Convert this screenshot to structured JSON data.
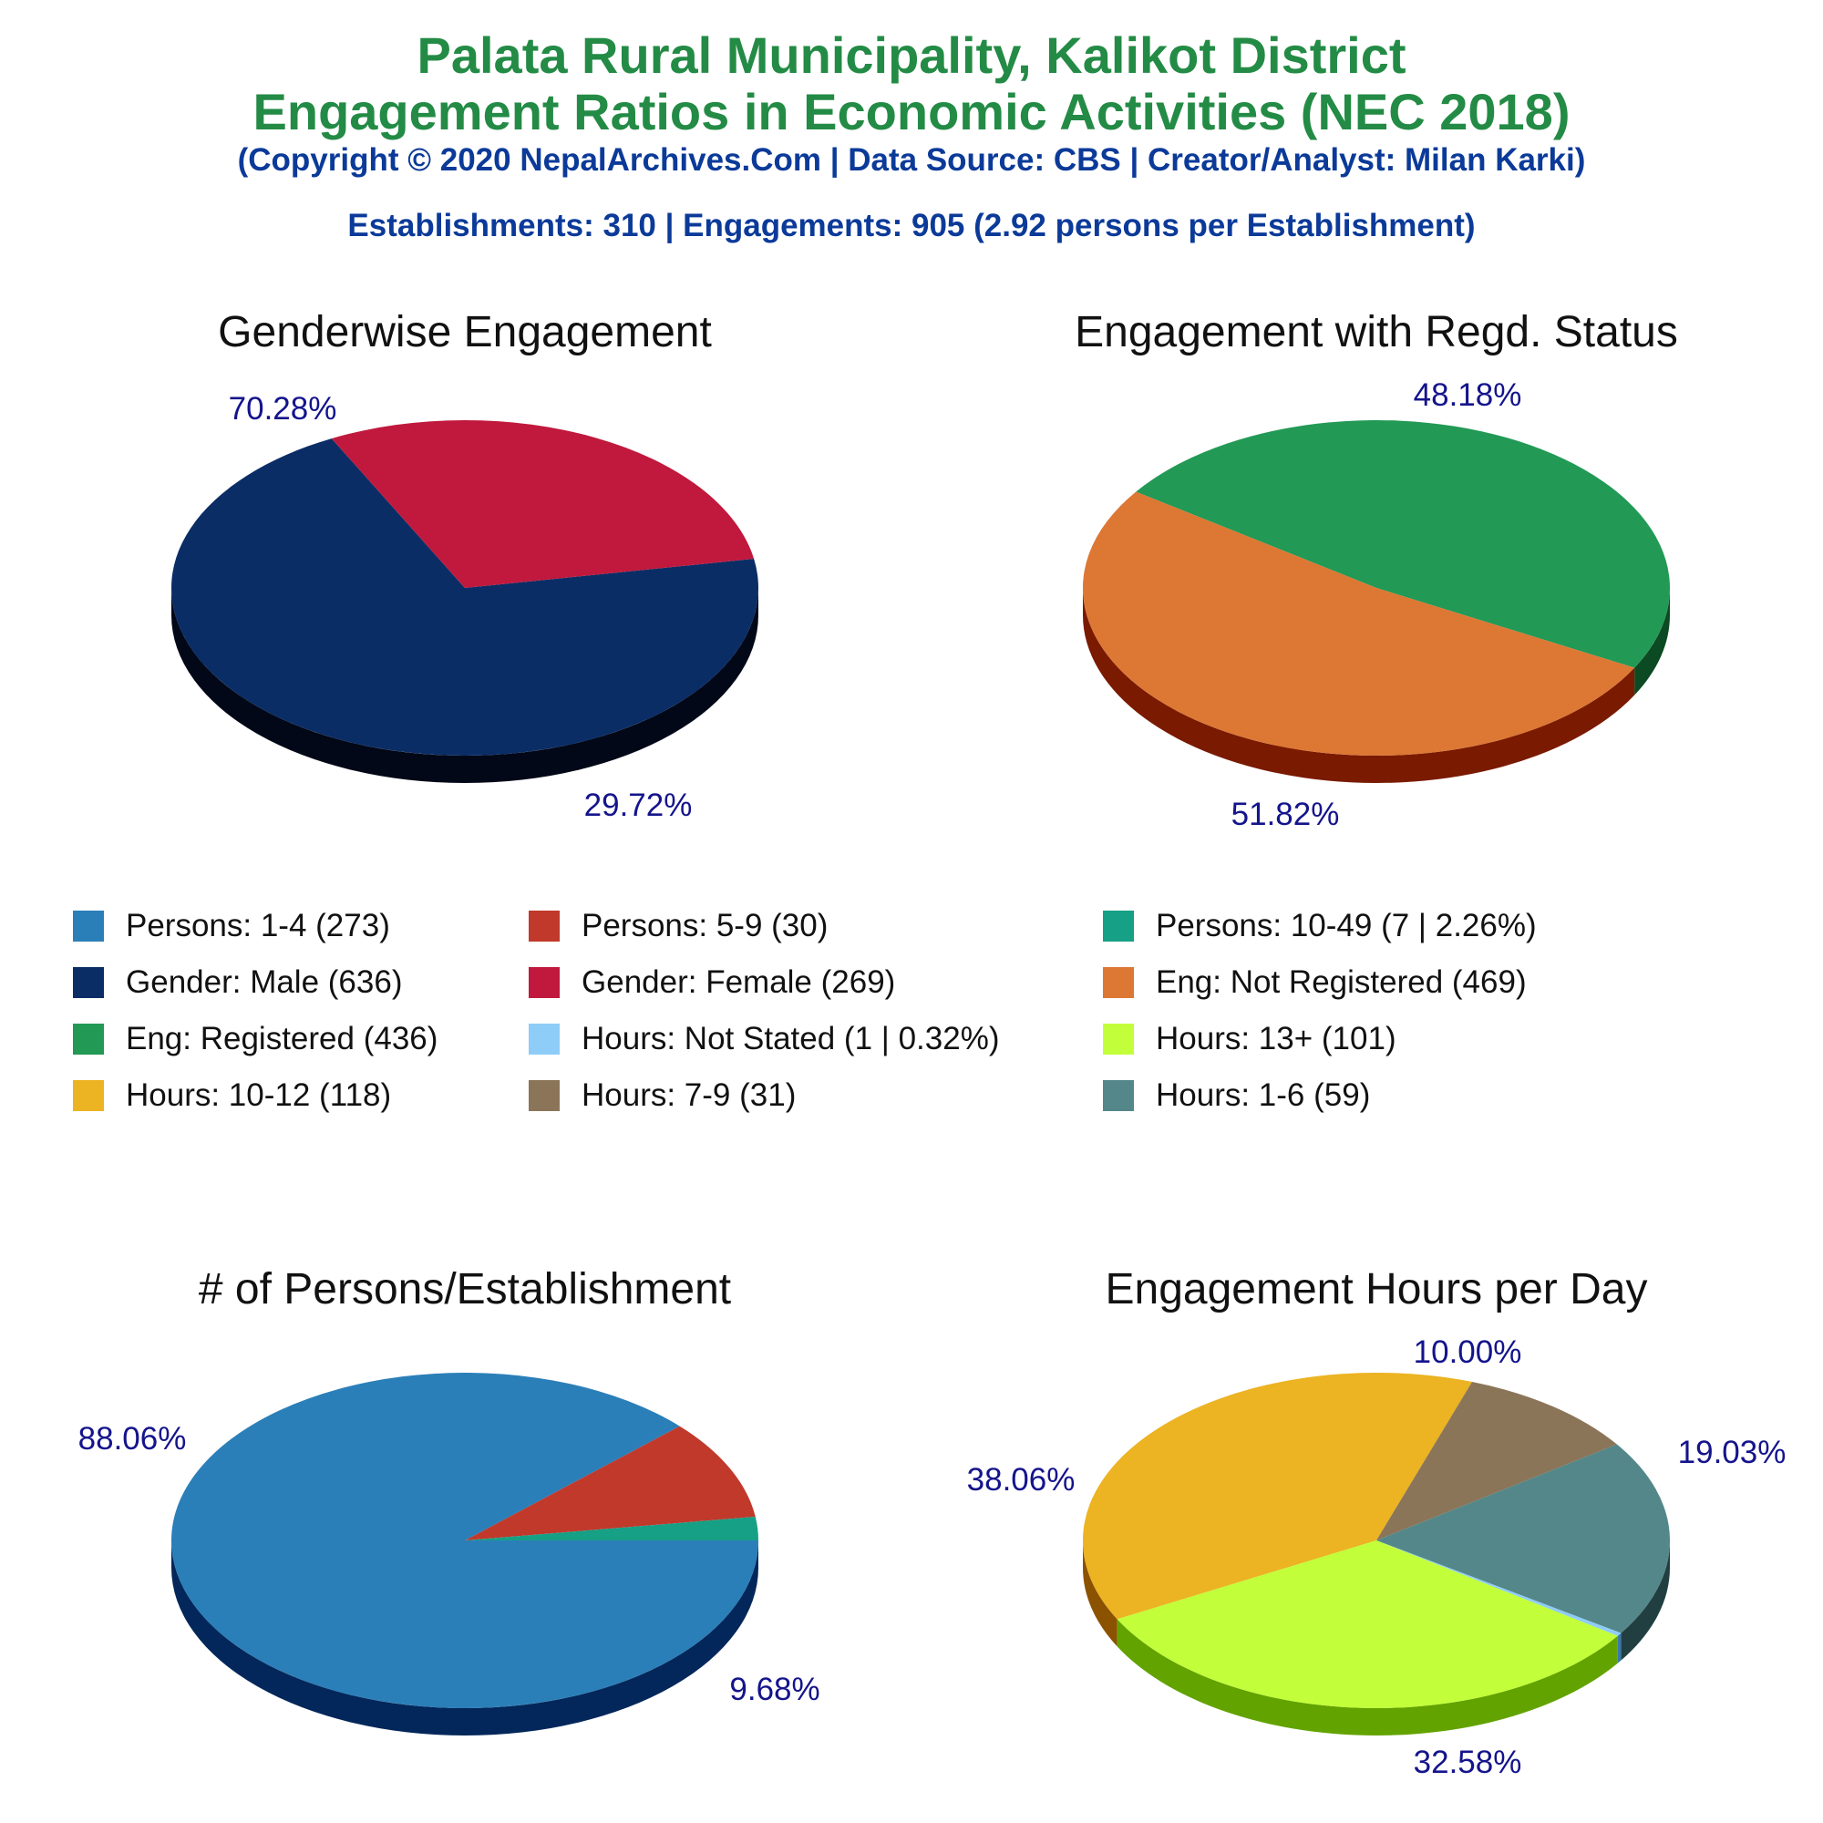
{
  "header": {
    "title_line1": "Palata Rural Municipality, Kalikot District",
    "title_line2": "Engagement Ratios in Economic Activities (NEC 2018)",
    "subtitle": "(Copyright © 2020 NepalArchives.Com | Data Source: CBS | Creator/Analyst: Milan Karki)",
    "stats": "Establishments: 310 | Engagements: 905 (2.92 persons per Establishment)"
  },
  "colors": {
    "title": "#238b45",
    "subtitle": "#0b3a99",
    "pct_label": "#14148c"
  },
  "legend": [
    {
      "label": "Persons: 1-4 (273)",
      "color": "#2b7fb8"
    },
    {
      "label": "Persons: 5-9 (30)",
      "color": "#c0392b"
    },
    {
      "label": "Persons: 10-49 (7 | 2.26%)",
      "color": "#16a085"
    },
    {
      "label": "Gender: Male (636)",
      "color": "#0b2d66"
    },
    {
      "label": "Gender: Female (269)",
      "color": "#c0193d"
    },
    {
      "label": "Eng: Not Registered (469)",
      "color": "#dd7734"
    },
    {
      "label": "Eng: Registered (436)",
      "color": "#229955"
    },
    {
      "label": "Hours: Not Stated (1 | 0.32%)",
      "color": "#8ecdf8"
    },
    {
      "label": "Hours: 13+ (101)",
      "color": "#c2ff3a"
    },
    {
      "label": "Hours: 10-12 (118)",
      "color": "#ecb322"
    },
    {
      "label": "Hours: 7-9 (31)",
      "color": "#8b7558"
    },
    {
      "label": "Hours: 1-6 (59)",
      "color": "#548789"
    }
  ],
  "chart_data": [
    {
      "type": "pie",
      "title": "Genderwise Engagement",
      "categories": [
        "Gender: Male",
        "Gender: Female"
      ],
      "values": [
        636,
        269
      ],
      "percent_labels": [
        "70.28%",
        "29.72%"
      ],
      "colors": [
        "#0b2d66",
        "#c0193d"
      ],
      "side_colors": [
        "#020817",
        "#650000"
      ]
    },
    {
      "type": "pie",
      "title": "Engagement with Regd. Status",
      "categories": [
        "Eng: Registered",
        "Eng: Not Registered"
      ],
      "values": [
        436,
        469
      ],
      "percent_labels": [
        "48.18%",
        "51.82%"
      ],
      "colors": [
        "#229955",
        "#dd7734"
      ],
      "side_colors": [
        "#0b4a22",
        "#7a1a00"
      ]
    },
    {
      "type": "pie",
      "title": "# of Persons/Establishment",
      "categories": [
        "Persons: 1-4",
        "Persons: 5-9",
        "Persons: 10-49"
      ],
      "values": [
        273,
        30,
        7
      ],
      "percent_labels": [
        "88.06%",
        "9.68%",
        ""
      ],
      "colors": [
        "#2b7fb8",
        "#c0392b",
        "#16a085"
      ],
      "side_colors": [
        "#03275a",
        "#650000",
        "#03403a"
      ]
    },
    {
      "type": "pie",
      "title": "Engagement Hours per Day",
      "categories": [
        "Hours: 10-12",
        "Hours: 7-9",
        "Hours: 1-6",
        "Hours: Not Stated",
        "Hours: 13+"
      ],
      "values": [
        118,
        31,
        59,
        1,
        101
      ],
      "percent_labels": [
        "38.06%",
        "10.00%",
        "19.03%",
        "",
        "32.58%"
      ],
      "colors": [
        "#ecb322",
        "#8b7558",
        "#548789",
        "#8ecdf8",
        "#c2ff3a"
      ],
      "side_colors": [
        "#8b5200",
        "#4d3a22",
        "#213f41",
        "#3a78a8",
        "#62a300"
      ]
    }
  ]
}
